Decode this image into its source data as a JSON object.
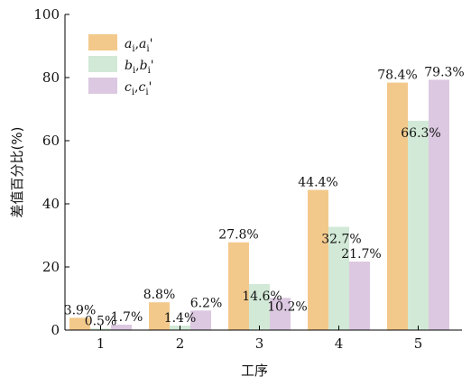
{
  "chart_data": {
    "type": "bar",
    "xlabel": "工序",
    "ylabel": "差值百分比(%)",
    "ylim": [
      0,
      100
    ],
    "yticks": [
      0,
      20,
      40,
      60,
      80,
      100
    ],
    "categories": [
      "1",
      "2",
      "3",
      "4",
      "5"
    ],
    "legend_position": "top-left",
    "series": [
      {
        "name": "a_i,a_i'",
        "legend_parts": [
          [
            "a",
            "i",
            ","
          ],
          [
            "a",
            "i",
            "'"
          ]
        ],
        "color": "#F3C98B",
        "values": [
          3.9,
          8.8,
          27.8,
          44.4,
          78.4
        ],
        "labels": [
          "3.9%",
          "8.8%",
          "27.8%",
          "44.4%",
          "78.4%"
        ]
      },
      {
        "name": "b_i,b_i'",
        "legend_parts": [
          [
            "b",
            "i",
            ","
          ],
          [
            "b",
            "i",
            "'"
          ]
        ],
        "color": "#D1E9D6",
        "values": [
          0.5,
          1.4,
          14.6,
          32.7,
          66.3
        ],
        "labels": [
          "0.5%",
          "1.4%",
          "14.6%",
          "32.7%",
          "66.3%"
        ]
      },
      {
        "name": "c_i,c_i'",
        "legend_parts": [
          [
            "c",
            "i",
            ","
          ],
          [
            "c",
            "i",
            "'"
          ]
        ],
        "color": "#DCC8E1",
        "values": [
          1.7,
          6.2,
          10.2,
          21.7,
          79.3
        ],
        "labels": [
          "1.7%",
          "6.2%",
          "10.2%",
          "21.7%",
          "79.3%"
        ]
      }
    ]
  }
}
